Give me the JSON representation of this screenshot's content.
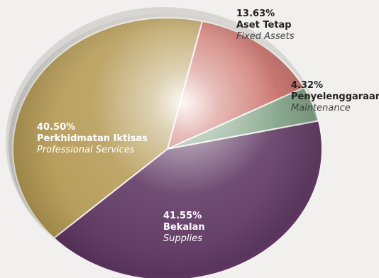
{
  "chart_data": {
    "type": "pie",
    "title": "",
    "slices": [
      {
        "percent": 13.63,
        "value_label": "13.63%",
        "label_ms": "Aset Tetap",
        "label_en": "Fixed Assets",
        "color": "#c96a62"
      },
      {
        "percent": 4.32,
        "value_label": "4.32%",
        "label_ms": "Penyelenggaraan",
        "label_en": "Maintenance",
        "color": "#7ea184"
      },
      {
        "percent": 41.55,
        "value_label": "41.55%",
        "label_ms": "Bekalan",
        "label_en": "Supplies",
        "color": "#5d3560"
      },
      {
        "percent": 40.5,
        "value_label": "40.50%",
        "label_ms": "Perkhidmatan Iktisas",
        "label_en": "Professional Services",
        "color": "#b59a55"
      }
    ]
  }
}
